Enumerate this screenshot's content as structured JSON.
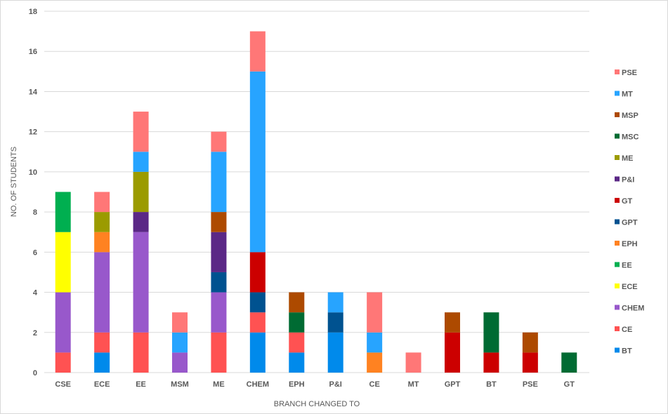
{
  "chart_data": {
    "type": "bar",
    "stacked": true,
    "title": "",
    "xlabel": "BRANCH CHANGED TO",
    "ylabel": "NO. OF STUDENTS",
    "ylim": [
      0,
      18
    ],
    "yticks": [
      0,
      2,
      4,
      6,
      8,
      10,
      12,
      14,
      16,
      18
    ],
    "grid": true,
    "legend_position": "right",
    "categories": [
      "CSE",
      "ECE",
      "EE",
      "MSM",
      "ME",
      "CHEM",
      "EPH",
      "P&I",
      "CE",
      "MT",
      "GPT",
      "BT",
      "PSE",
      "GT"
    ],
    "series": [
      {
        "name": "BT",
        "color": "#008AEB",
        "values": [
          0,
          1,
          0,
          0,
          0,
          2,
          1,
          2,
          0,
          0,
          0,
          0,
          0,
          0
        ]
      },
      {
        "name": "CE",
        "color": "#FF5252",
        "values": [
          1,
          1,
          2,
          0,
          2,
          1,
          1,
          0,
          0,
          0,
          0,
          0,
          0,
          0
        ]
      },
      {
        "name": "CHEM",
        "color": "#9858CB",
        "values": [
          3,
          4,
          5,
          1,
          2,
          0,
          0,
          0,
          0,
          0,
          0,
          0,
          0,
          0
        ]
      },
      {
        "name": "ECE",
        "color": "#FFFF00",
        "values": [
          3,
          0,
          0,
          0,
          0,
          0,
          0,
          0,
          0,
          0,
          0,
          0,
          0,
          0
        ]
      },
      {
        "name": "EE",
        "color": "#00AF50",
        "values": [
          2,
          0,
          0,
          0,
          0,
          0,
          0,
          0,
          0,
          0,
          0,
          0,
          0,
          0
        ]
      },
      {
        "name": "EPH",
        "color": "#FF8221",
        "values": [
          0,
          1,
          0,
          0,
          0,
          0,
          0,
          0,
          1,
          0,
          0,
          0,
          0,
          0
        ]
      },
      {
        "name": "GPT",
        "color": "#005290",
        "values": [
          0,
          0,
          0,
          0,
          1,
          1,
          0,
          1,
          0,
          0,
          0,
          0,
          0,
          0
        ]
      },
      {
        "name": "GT",
        "color": "#CC0000",
        "values": [
          0,
          0,
          0,
          0,
          0,
          2,
          0,
          0,
          0,
          0,
          2,
          1,
          1,
          0
        ]
      },
      {
        "name": "P&I",
        "color": "#5B2886",
        "values": [
          0,
          0,
          1,
          0,
          2,
          0,
          0,
          0,
          0,
          0,
          0,
          0,
          0,
          0
        ]
      },
      {
        "name": "ME",
        "color": "#9B9B00",
        "values": [
          0,
          1,
          2,
          0,
          0,
          0,
          0,
          0,
          0,
          0,
          0,
          0,
          0,
          0
        ]
      },
      {
        "name": "MSC",
        "color": "#006B33",
        "values": [
          0,
          0,
          0,
          0,
          0,
          0,
          1,
          0,
          0,
          0,
          0,
          2,
          0,
          1
        ]
      },
      {
        "name": "MSP",
        "color": "#AD4A00",
        "values": [
          0,
          0,
          0,
          0,
          1,
          0,
          1,
          0,
          0,
          0,
          1,
          0,
          1,
          0
        ]
      },
      {
        "name": "MT",
        "color": "#27A4FF",
        "values": [
          0,
          0,
          1,
          1,
          3,
          9,
          0,
          1,
          1,
          0,
          0,
          0,
          0,
          0
        ]
      },
      {
        "name": "PSE",
        "color": "#FF7777",
        "values": [
          0,
          1,
          2,
          1,
          1,
          2,
          0,
          0,
          2,
          1,
          0,
          0,
          0,
          0
        ]
      }
    ]
  }
}
